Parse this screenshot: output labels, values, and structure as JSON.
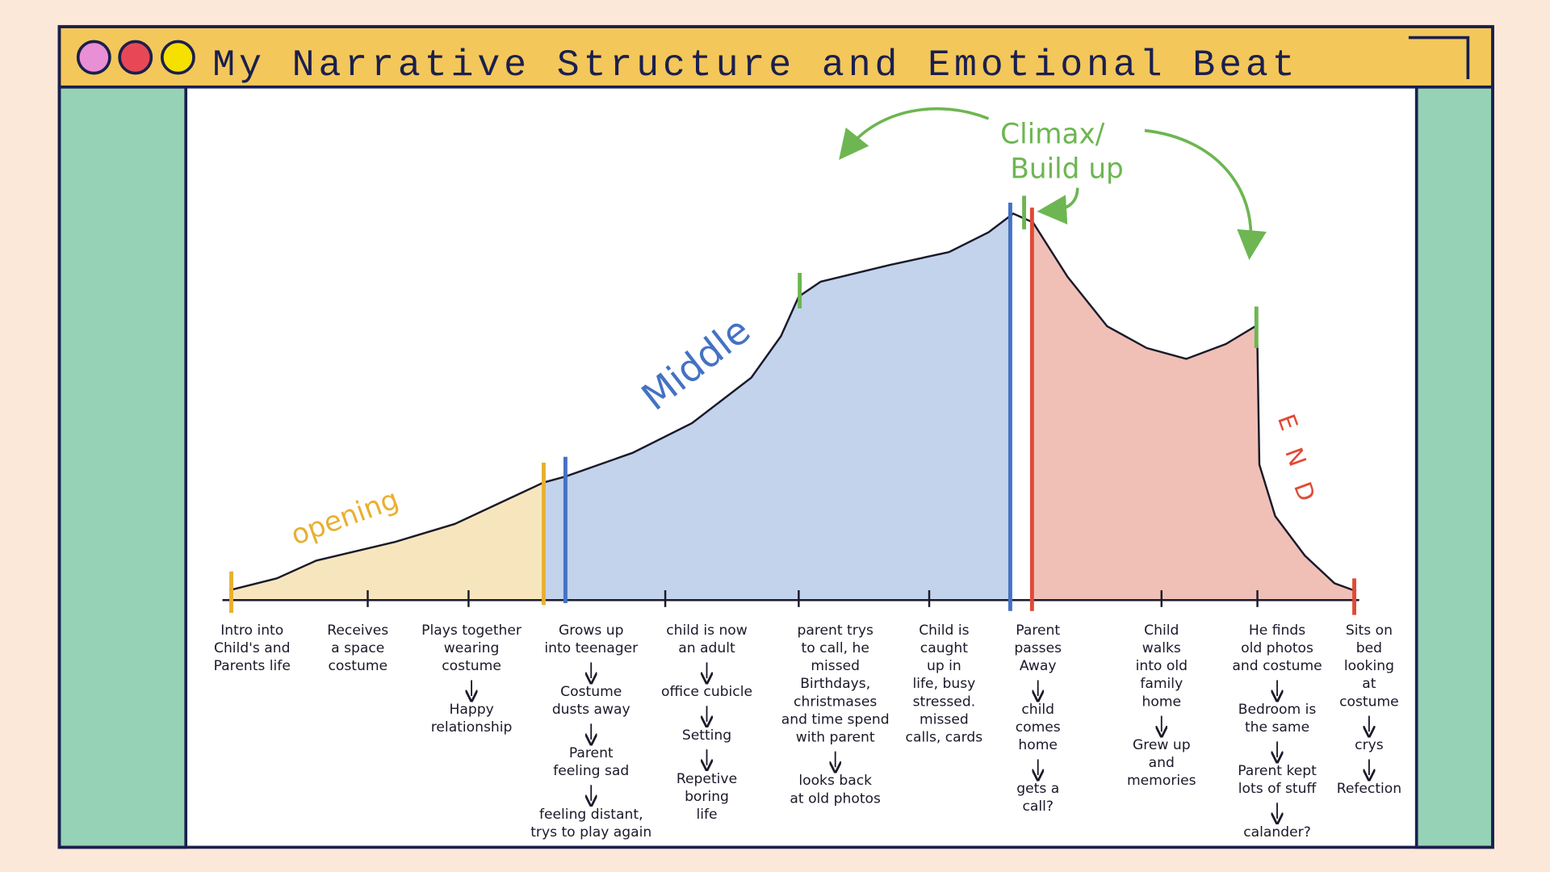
{
  "header": {
    "title": "My Narrative Structure and Emotional Beat"
  },
  "sections": {
    "opening": "opening",
    "middle": "Middle",
    "end": [
      "E",
      "N",
      "D"
    ],
    "climax": [
      "Climax/",
      "Build up"
    ]
  },
  "columns": [
    {
      "items": [
        [
          "Intro into",
          "Child's and",
          "Parents life"
        ]
      ]
    },
    {
      "items": [
        [
          "Receives",
          "a space",
          "costume"
        ]
      ]
    },
    {
      "items": [
        [
          "Plays together",
          "wearing",
          "costume"
        ],
        [
          "Happy",
          "relationship"
        ]
      ]
    },
    {
      "items": [
        [
          "Grows up",
          "into teenager"
        ],
        [
          "Costume",
          "dusts away"
        ],
        [
          "Parent",
          "feeling sad"
        ],
        [
          "feeling distant,",
          "trys to play again"
        ]
      ]
    },
    {
      "items": [
        [
          "child is now",
          "an adult"
        ],
        [
          "office cubicle"
        ],
        [
          "Setting"
        ],
        [
          "Repetive",
          "boring",
          "life"
        ]
      ]
    },
    {
      "items": [
        [
          "parent trys",
          "to call, he",
          "missed",
          "Birthdays,",
          "christmases",
          "and time spend",
          "with parent"
        ],
        [
          "looks back",
          "at old photos"
        ]
      ]
    },
    {
      "items": [
        [
          "Child is",
          "caught",
          "up in",
          "life, busy",
          "stressed.",
          "missed",
          "calls, cards"
        ]
      ]
    },
    {
      "items": [
        [
          "Parent",
          "passes",
          "Away"
        ],
        [
          "child",
          "comes",
          "home"
        ],
        [
          "gets a",
          "call?"
        ]
      ]
    },
    {
      "items": [
        [
          "Child",
          "walks",
          "into old",
          "family",
          "home"
        ],
        [
          "Grew up",
          "and",
          "memories"
        ]
      ]
    },
    {
      "items": [
        [
          "He finds",
          "old photos",
          "and costume"
        ],
        [
          "Bedroom is",
          "the same"
        ],
        [
          "Parent kept",
          "lots of stuff"
        ],
        [
          "calander?"
        ]
      ]
    },
    {
      "items": [
        [
          "Sits on",
          "bed",
          "looking",
          "at",
          "costume"
        ],
        [
          "crys"
        ],
        [
          "Refection"
        ]
      ]
    }
  ]
}
